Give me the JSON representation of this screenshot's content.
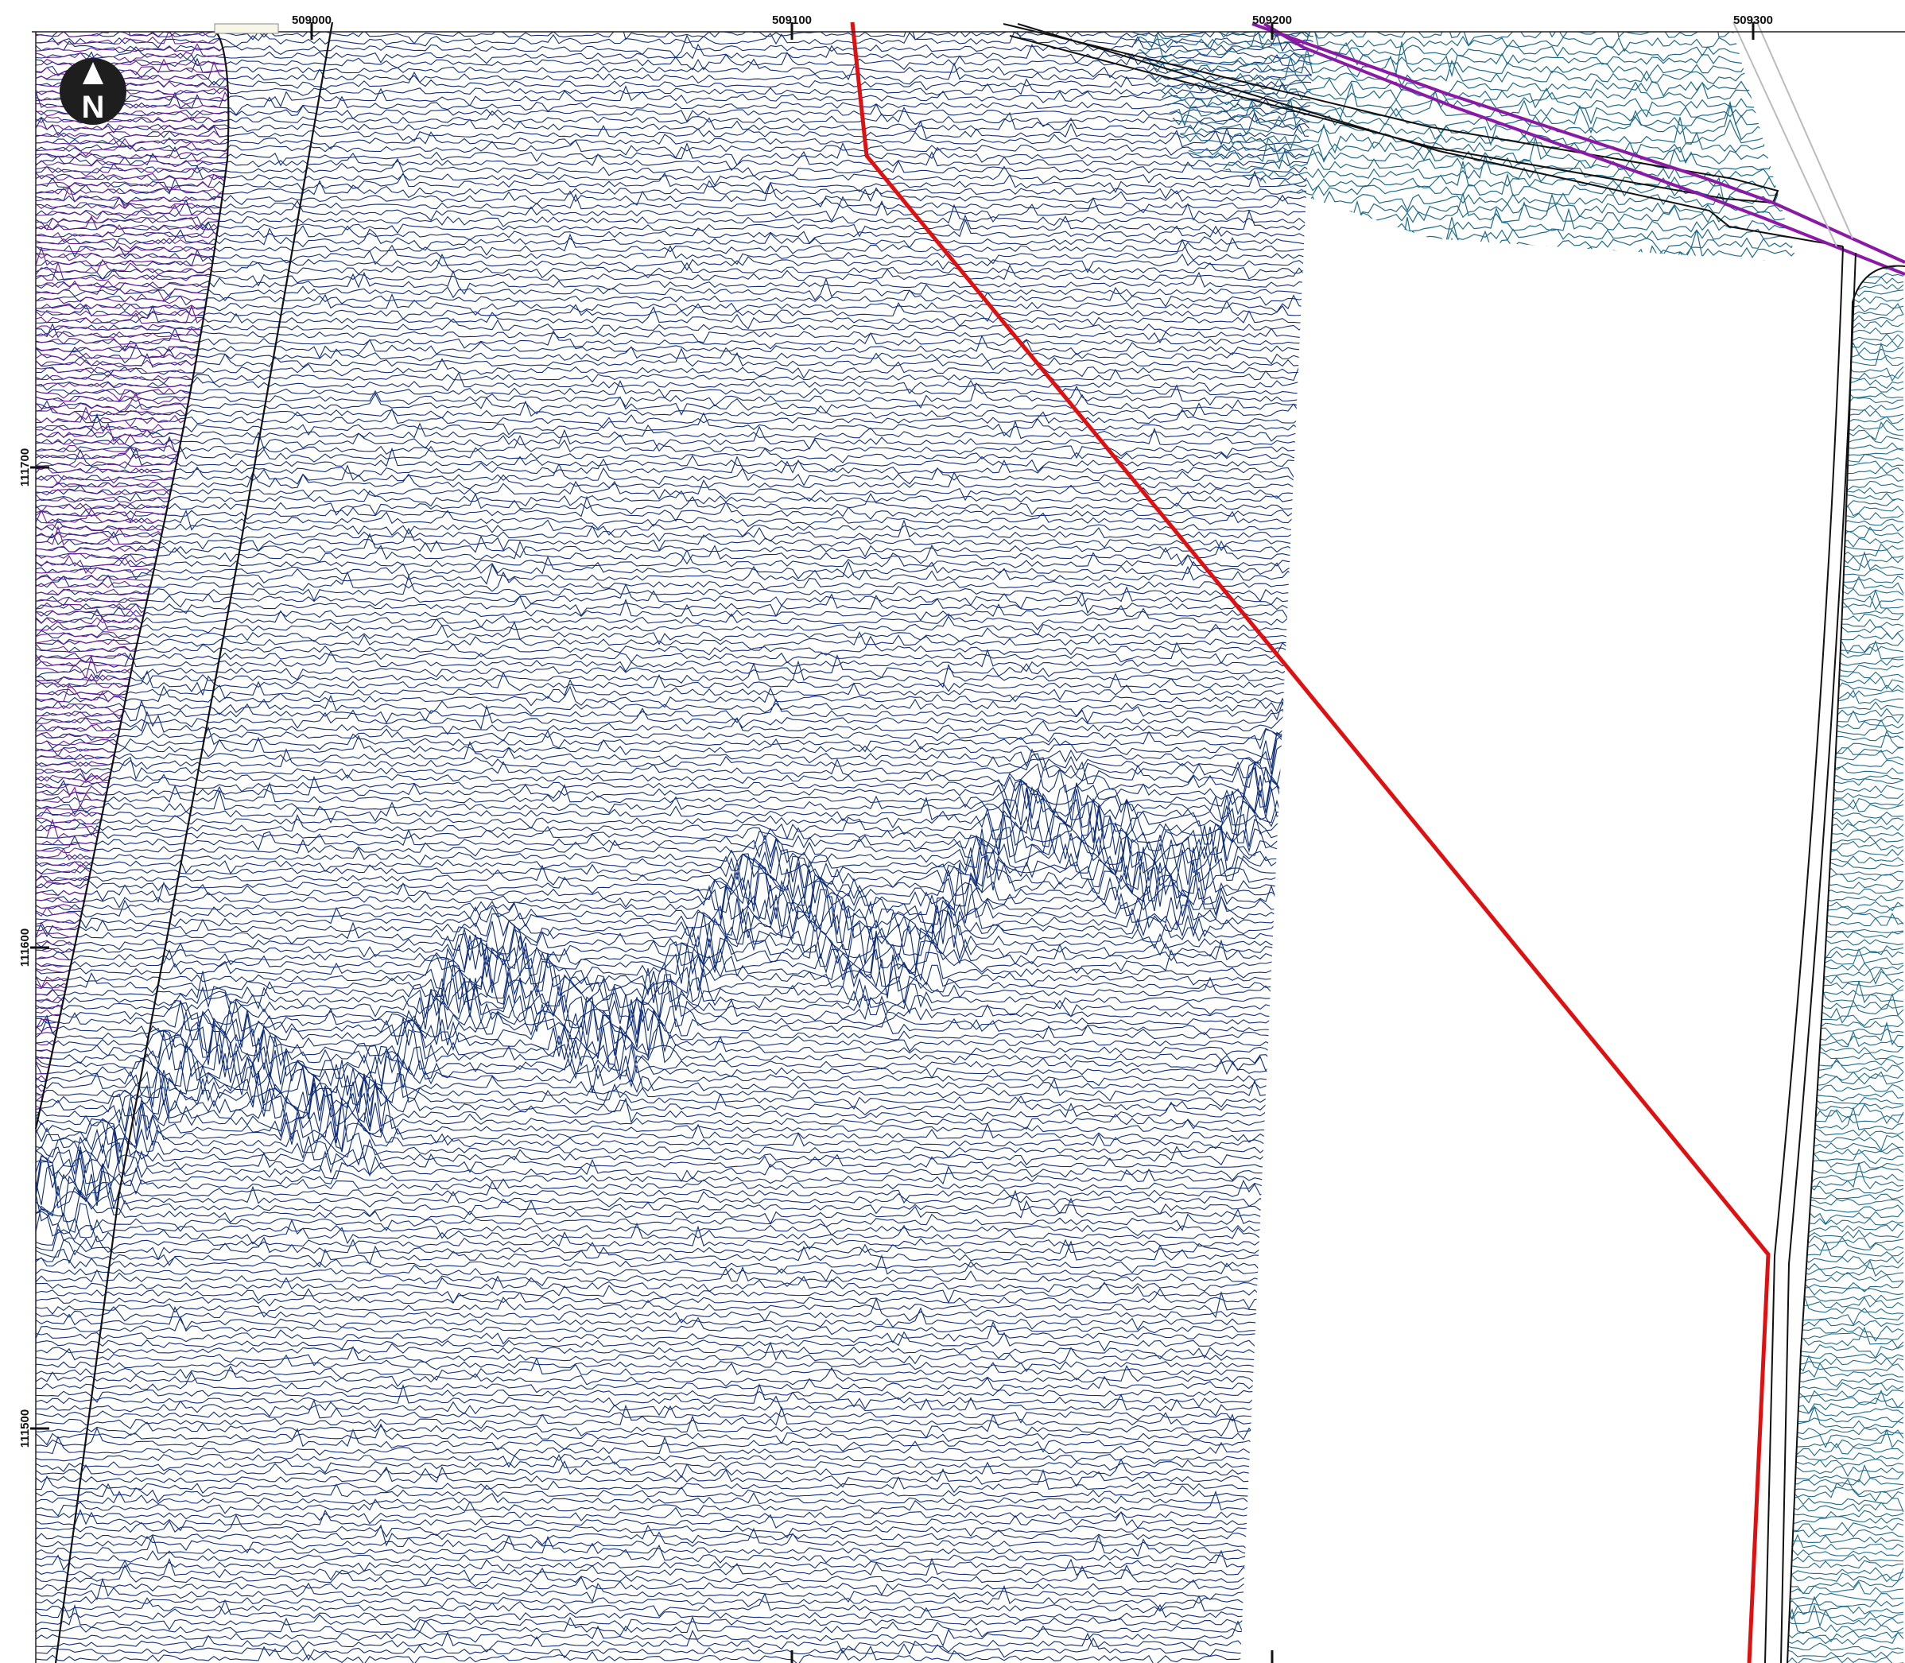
{
  "grid": {
    "easting_ticks": [
      {
        "value": 509000,
        "label": "509000"
      },
      {
        "value": 509100,
        "label": "509100"
      },
      {
        "value": 509200,
        "label": "509200"
      },
      {
        "value": 509300,
        "label": "509300"
      }
    ],
    "northing_ticks": [
      {
        "value": 111700,
        "label": "111700"
      },
      {
        "value": 111600,
        "label": "111600"
      },
      {
        "value": 111500,
        "label": "111500"
      }
    ]
  },
  "north_arrow": {
    "letter": "N"
  },
  "colors": {
    "survey_main": "#0e2d7a",
    "survey_west": "#6a1a96",
    "survey_east": "#1c6b8a",
    "boundary_red": "#e01010",
    "corridor_purple": "#8a1aa6",
    "outline_black": "#111111",
    "outline_grey": "#bbbbbb"
  },
  "layers": [
    {
      "id": "survey-main",
      "description": ""
    },
    {
      "id": "survey-west",
      "description": ""
    },
    {
      "id": "survey-east",
      "description": ""
    }
  ]
}
